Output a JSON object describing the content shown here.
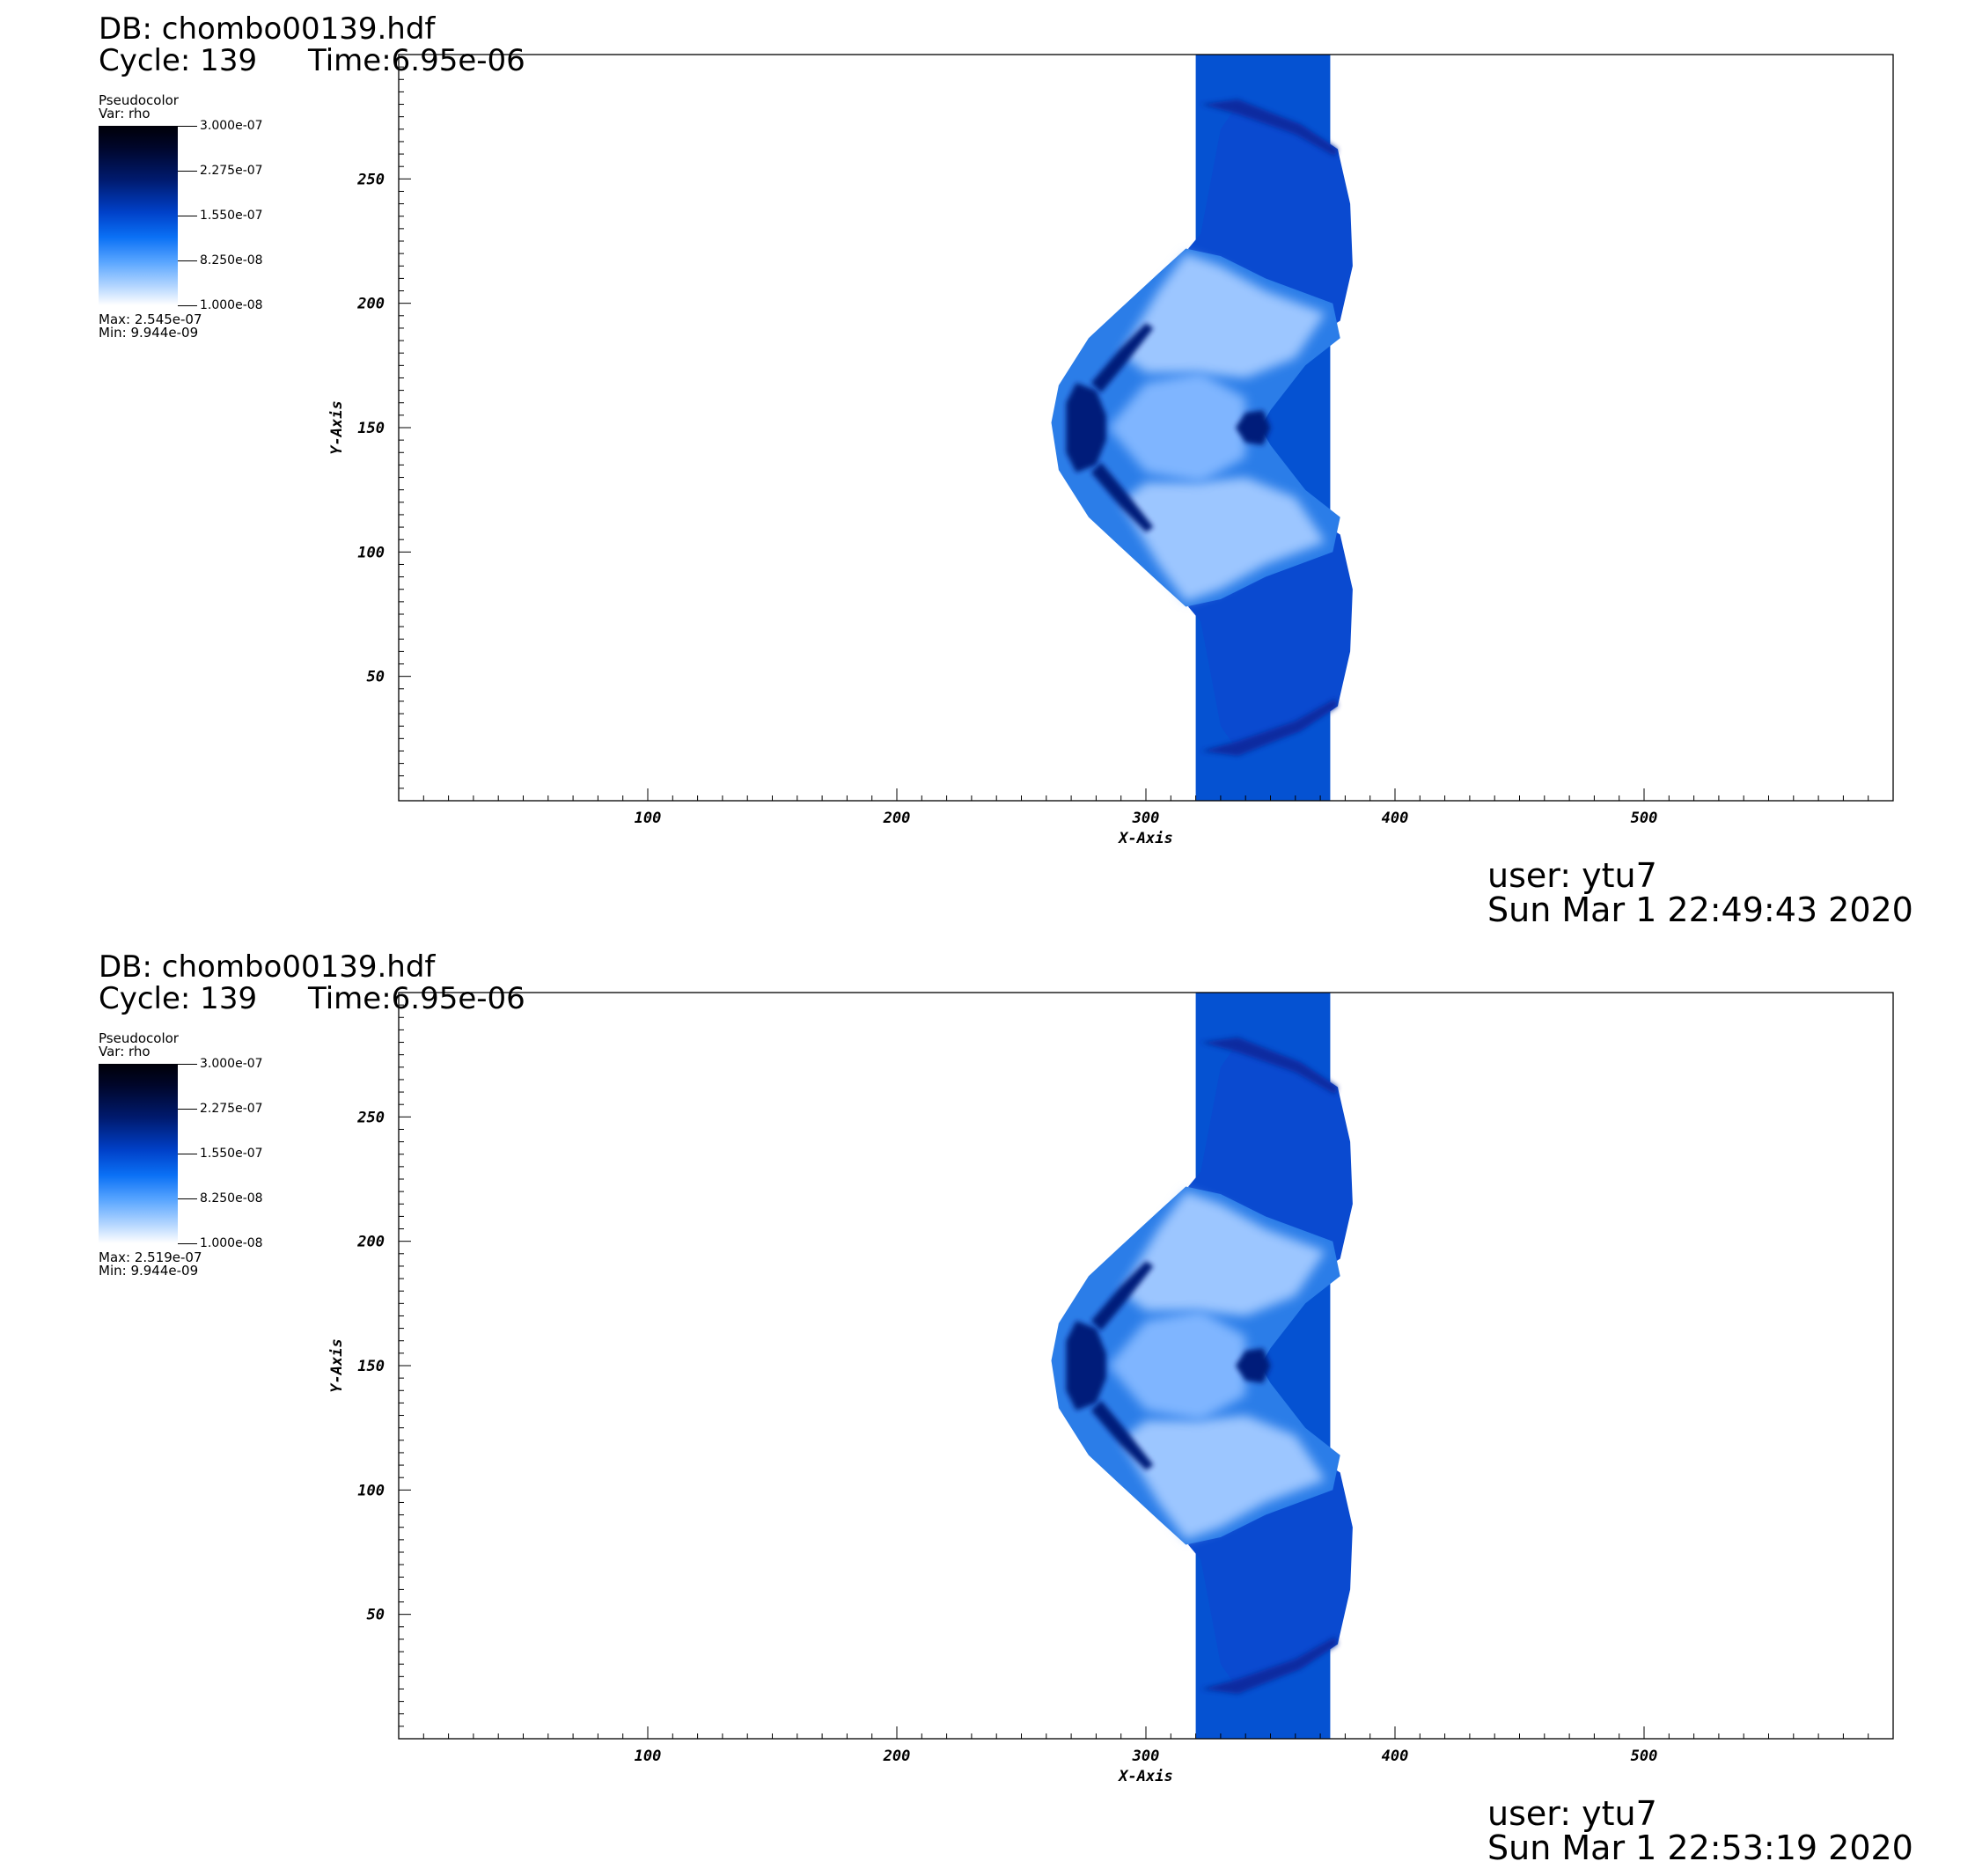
{
  "panels": [
    {
      "db_label": "DB: chombo00139.hdf",
      "cycle_label": "Cycle: 139",
      "time_label": "Time:6.95e-06",
      "legend": {
        "title": "Pseudocolor",
        "var": "Var: rho",
        "ticks": [
          "3.000e-07",
          "2.275e-07",
          "1.550e-07",
          "8.250e-08",
          "1.000e-08"
        ],
        "max": "Max:  2.545e-07",
        "min": "Min:  9.944e-09"
      },
      "user": "user: ytu7",
      "date": "Sun Mar  1 22:49:43 2020"
    },
    {
      "db_label": "DB: chombo00139.hdf",
      "cycle_label": "Cycle: 139",
      "time_label": "Time:6.95e-06",
      "legend": {
        "title": "Pseudocolor",
        "var": "Var: rho",
        "ticks": [
          "3.000e-07",
          "2.275e-07",
          "1.550e-07",
          "8.250e-08",
          "1.000e-08"
        ],
        "max": "Max:  2.519e-07",
        "min": "Min:  9.944e-09"
      },
      "user": "user: ytu7",
      "date": "Sun Mar  1 22:53:19 2020"
    }
  ],
  "chart_data": [
    {
      "type": "heatmap",
      "title": "",
      "variable": "rho",
      "xlabel": "X-Axis",
      "ylabel": "Y-Axis",
      "xlim": [
        0,
        600
      ],
      "ylim": [
        0,
        300
      ],
      "xticks": [
        100,
        200,
        300,
        400,
        500
      ],
      "yticks": [
        50,
        100,
        150,
        200,
        250
      ],
      "colorbar_range": [
        1e-08,
        3e-07
      ],
      "data_max": 2.545e-07,
      "data_min": 9.944e-09
    },
    {
      "type": "heatmap",
      "title": "",
      "variable": "rho",
      "xlabel": "X-Axis",
      "ylabel": "Y-Axis",
      "xlim": [
        0,
        600
      ],
      "ylim": [
        0,
        300
      ],
      "xticks": [
        100,
        200,
        300,
        400,
        500
      ],
      "yticks": [
        50,
        100,
        150,
        200,
        250
      ],
      "colorbar_range": [
        1e-08,
        3e-07
      ],
      "data_max": 2.519e-07,
      "data_min": 9.944e-09
    }
  ]
}
